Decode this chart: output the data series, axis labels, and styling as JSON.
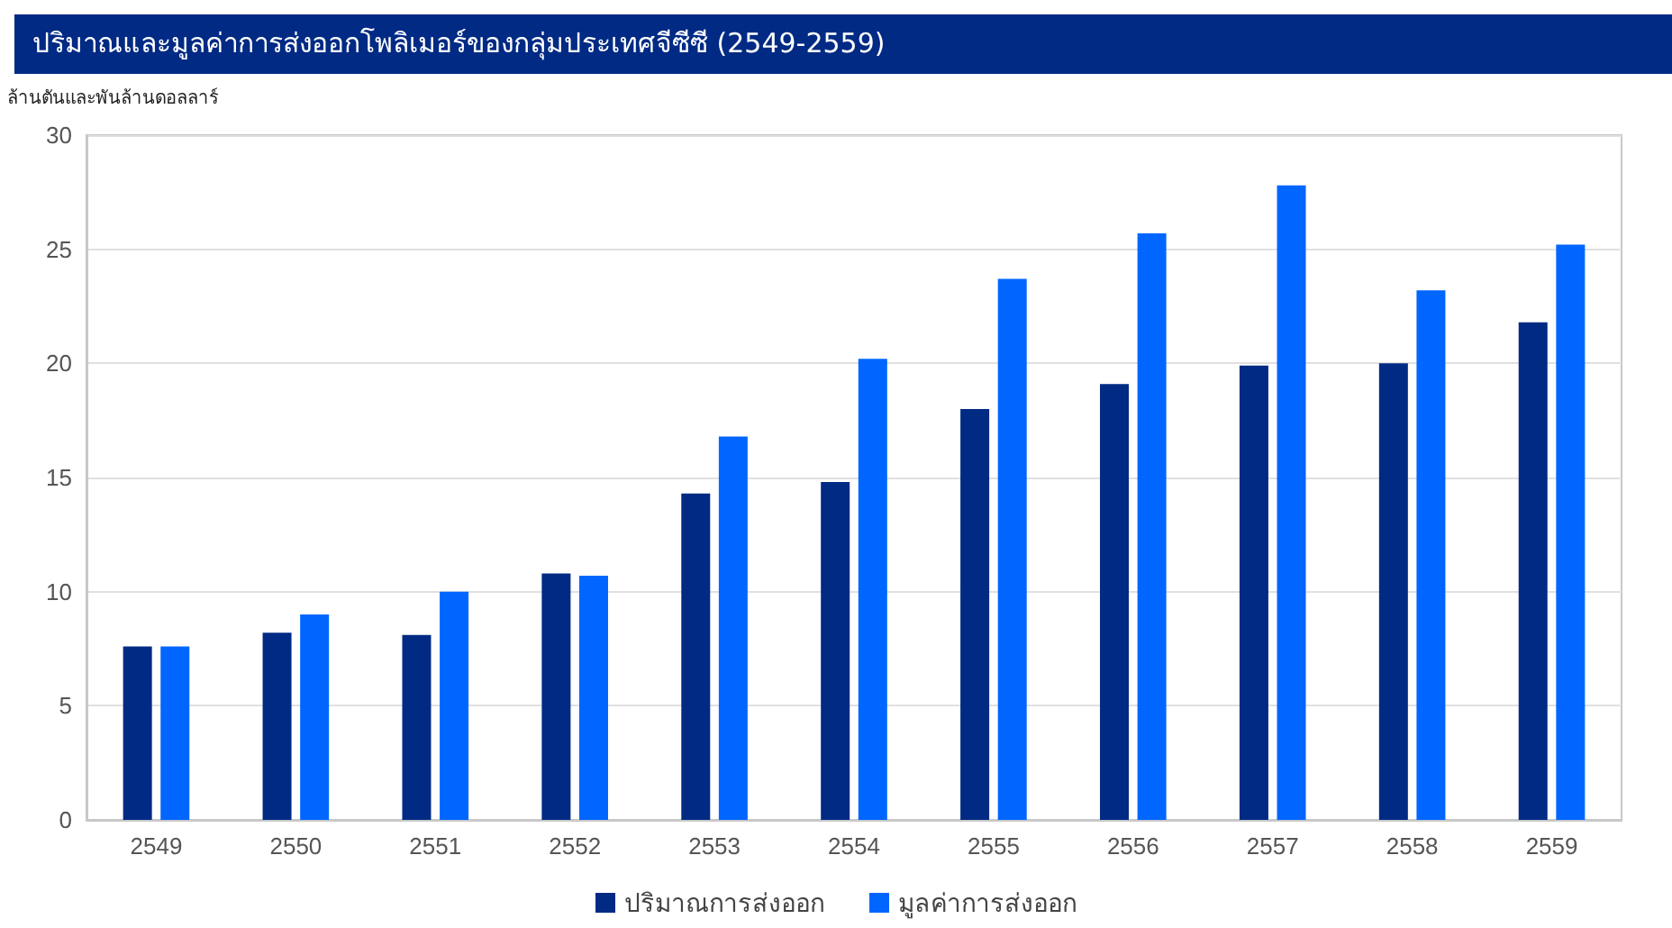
{
  "chart_data": {
    "type": "bar",
    "title": "ปริมาณและมูลค่าการส่งออกโพลิเมอร์ของกลุ่มประเทศจีซีซี (2549-2559)",
    "ylabel": "ล้านตันและพันล้านดอลลาร์",
    "categories": [
      "2549",
      "2550",
      "2551",
      "2552",
      "2553",
      "2554",
      "2555",
      "2556",
      "2557",
      "2558",
      "2559"
    ],
    "series": [
      {
        "name": "ปริมาณการส่งออก",
        "color": "#002a84",
        "values": [
          7.6,
          8.2,
          8.1,
          10.8,
          14.3,
          14.8,
          18.0,
          19.1,
          19.9,
          20.0,
          21.8
        ]
      },
      {
        "name": "มูลค่าการส่งออก",
        "color": "#0066ff",
        "values": [
          7.6,
          9.0,
          10.0,
          10.7,
          16.8,
          20.2,
          23.7,
          25.7,
          27.8,
          23.2,
          25.2
        ]
      }
    ],
    "ylim": [
      0,
      30
    ],
    "yticks": [
      0,
      5,
      10,
      15,
      20,
      25,
      30
    ],
    "grid": "y",
    "legend": "bottom"
  }
}
